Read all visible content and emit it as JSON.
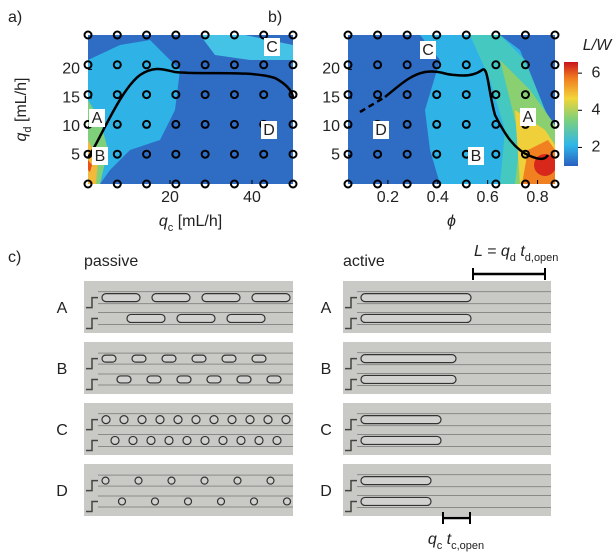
{
  "panels": [
    {
      "label": "a)",
      "xlabel": {
        "var": "q",
        "sub": "c",
        "unit": " [mL/h]"
      },
      "ylabel": {
        "var": "q",
        "sub": "d",
        "unit": " [mL/h]"
      },
      "xlim": [
        0,
        50
      ],
      "ylim": [
        0,
        26
      ],
      "xticks": [
        20,
        40
      ],
      "yticks": [
        5,
        10,
        15,
        20
      ],
      "regions": [
        "A",
        "B",
        "C",
        "D"
      ]
    },
    {
      "label": "b)",
      "xlabel": {
        "var": "ϕ"
      },
      "xlim": [
        0.04,
        0.87
      ],
      "ylim": [
        0,
        26
      ],
      "xticks": [
        0.2,
        0.4,
        0.6,
        0.8
      ],
      "yticks": [
        5,
        10,
        15,
        20
      ],
      "regions": [
        "A",
        "B",
        "C",
        "D"
      ]
    }
  ],
  "colorbar": {
    "label": "L/W",
    "lim": [
      1,
      6.6
    ],
    "ticks": [
      2,
      4,
      6
    ]
  },
  "panel_c": {
    "label": "c)",
    "columns": [
      "passive",
      "active"
    ],
    "rows": [
      "A",
      "B",
      "C",
      "D"
    ],
    "length_formula": {
      "lhs": "L = ",
      "q": "q",
      "q_sub": "d",
      "t": " t",
      "t_sub": "d,open"
    },
    "gap_formula": {
      "q": "q",
      "q_sub": "c",
      "t": " t",
      "t_sub": "c,open"
    }
  }
}
